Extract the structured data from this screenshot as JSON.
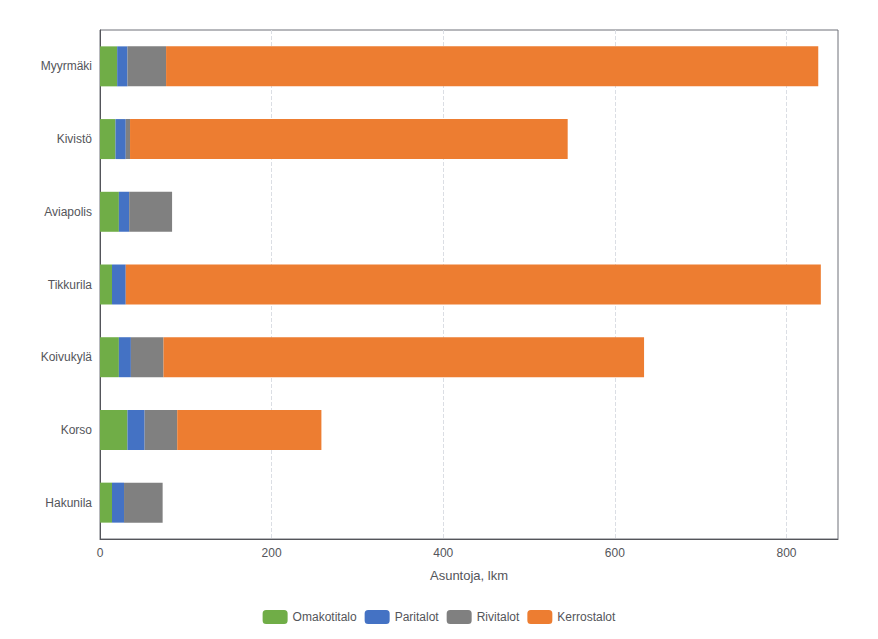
{
  "chart_data": {
    "type": "bar",
    "orientation": "horizontal",
    "stacked": true,
    "categories": [
      "Myyrmäki",
      "Kivistö",
      "Aviapolis",
      "Tikkurila",
      "Koivukylä",
      "Korso",
      "Hakunila"
    ],
    "series": [
      {
        "name": "Omakotitalo",
        "color": "#70ad47",
        "values": [
          20,
          18,
          22,
          14,
          22,
          32,
          14
        ]
      },
      {
        "name": "Paritalot",
        "color": "#4472c4",
        "values": [
          12,
          12,
          12,
          16,
          14,
          20,
          14
        ]
      },
      {
        "name": "Rivitalot",
        "color": "#808080",
        "values": [
          45,
          5,
          50,
          0,
          38,
          38,
          45
        ]
      },
      {
        "name": "Kerrostalot",
        "color": "#ed7d31",
        "values": [
          760,
          510,
          0,
          810,
          560,
          168,
          0
        ]
      }
    ],
    "xlabel": "Asuntoja, lkm",
    "xlim": [
      0,
      860
    ],
    "xticks": [
      0,
      200,
      400,
      600,
      800
    ],
    "grid": true,
    "legend": "bottom"
  }
}
